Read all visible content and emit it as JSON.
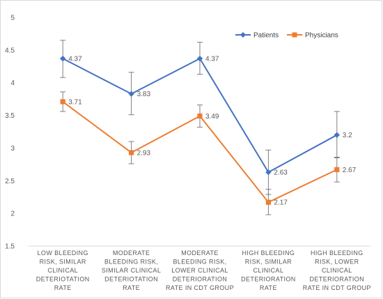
{
  "chart_data": {
    "type": "line",
    "title": "",
    "xlabel": "",
    "ylabel": "",
    "ylim": [
      1.5,
      5
    ],
    "yticks": [
      "5",
      "4.5",
      "4",
      "3.5",
      "3",
      "2.5",
      "2",
      "1.5"
    ],
    "ytick_values": [
      5,
      4.5,
      4,
      3.5,
      3,
      2.5,
      2,
      1.5
    ],
    "grid": false,
    "legend_position": "top-right",
    "categories": [
      [
        "LOW BLEEDING",
        "RISK, SIMILAR",
        "CLINICAL",
        "DETERIOTATION",
        "RATE"
      ],
      [
        "MODERATE",
        "BLEEDING RISK,",
        "SIMILAR CLINICAL",
        "DETERIOTATION",
        "RATE"
      ],
      [
        "MODERATE",
        "BLEEDING RISK,",
        "LOWER CLINICAL",
        "DETERIORATION",
        "RATE IN CDT GROUP"
      ],
      [
        "HIGH BLEEDING",
        "RISK, SIMILAR",
        "CLINICAL",
        "DETERIORATION",
        "RATE"
      ],
      [
        "HIGH BLEEDING",
        "RISK, LOWER",
        "CLINICAL",
        "DETERIORATION",
        "RATE IN CDT GROUP"
      ]
    ],
    "series": [
      {
        "name": "Patients",
        "color": "#4472c4",
        "marker": "diamond",
        "values": [
          4.37,
          3.83,
          4.37,
          2.63,
          3.2
        ],
        "labels": [
          "4.37",
          "3.83",
          "4.37",
          "2.63",
          "3.2"
        ],
        "error_low": [
          4.08,
          3.51,
          4.13,
          2.29,
          2.85
        ],
        "error_high": [
          4.65,
          4.16,
          4.62,
          2.97,
          3.56
        ]
      },
      {
        "name": "Physicians",
        "color": "#ed7d31",
        "marker": "square",
        "values": [
          3.71,
          2.93,
          3.49,
          2.17,
          2.67
        ],
        "labels": [
          "3.71",
          "2.93",
          "3.49",
          "2.17",
          "2.67"
        ],
        "error_low": [
          3.56,
          2.76,
          3.32,
          1.98,
          2.48
        ],
        "error_high": [
          3.86,
          3.1,
          3.66,
          2.37,
          2.86
        ]
      }
    ]
  }
}
